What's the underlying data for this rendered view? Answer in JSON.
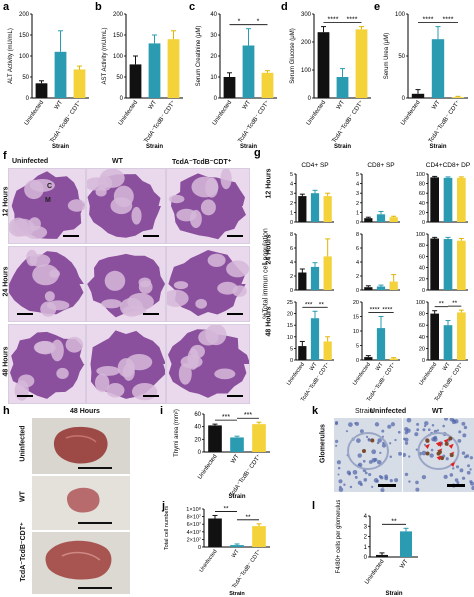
{
  "colors": {
    "uninfected": "#111111",
    "wt": "#2a9bb0",
    "tcd": "#f4d23a",
    "histo_bg": "#ead8ec",
    "histo_cortex": "#8a4f9d",
    "histo_medulla": "#d6b9d9",
    "tissue": "#a7514d",
    "ihc_bg": "#d7dde6"
  },
  "strain_label": "Strain",
  "bar_categories": [
    "Uninfected",
    "WT",
    "TcdA⁻TcdB⁻ CDT⁺"
  ],
  "chart_data": [
    {
      "panel": "a",
      "type": "bar",
      "ylabel": "ALT Activity (mU/mL)",
      "xlabel": "Strain",
      "ylim": [
        0,
        200
      ],
      "yticks": [
        0,
        50,
        100,
        150,
        200
      ],
      "categories": [
        "Uninfected",
        "WT",
        "TcdA⁻TcdB⁻ CDT⁺"
      ],
      "values": [
        35,
        110,
        68
      ],
      "errors": [
        6,
        50,
        8
      ],
      "sig": []
    },
    {
      "panel": "b",
      "type": "bar",
      "ylabel": "AST Activity (mU/mL)",
      "xlabel": "Strain",
      "ylim": [
        0,
        200
      ],
      "yticks": [
        0,
        50,
        100,
        150,
        200
      ],
      "categories": [
        "Uninfected",
        "WT",
        "TcdA⁻TcdB⁻ CDT⁺"
      ],
      "values": [
        80,
        130,
        140
      ],
      "errors": [
        20,
        20,
        20
      ],
      "sig": []
    },
    {
      "panel": "c",
      "type": "bar",
      "ylabel": "Serum Creatinine (μM)",
      "xlabel": "Strain",
      "ylim": [
        0,
        40
      ],
      "yticks": [
        0,
        10,
        20,
        30,
        40
      ],
      "categories": [
        "Uninfected",
        "WT",
        "TcdA⁻TcdB⁻ CDT⁺"
      ],
      "values": [
        10,
        25,
        12
      ],
      "errors": [
        2,
        8,
        1
      ],
      "sig": [
        {
          "from": 0,
          "to": 1,
          "text": "*"
        },
        {
          "from": 1,
          "to": 2,
          "text": "*"
        }
      ]
    },
    {
      "panel": "d",
      "type": "bar",
      "ylabel": "Serum Glucose (μM)",
      "xlabel": "Strain",
      "ylim": [
        0,
        300
      ],
      "yticks": [
        0,
        100,
        200,
        300
      ],
      "categories": [
        "Uninfected",
        "WT",
        "TcdA⁻TcdB⁻ CDT⁺"
      ],
      "values": [
        235,
        75,
        245
      ],
      "errors": [
        20,
        30,
        10
      ],
      "sig": [
        {
          "from": 0,
          "to": 1,
          "text": "****"
        },
        {
          "from": 1,
          "to": 2,
          "text": "****"
        }
      ]
    },
    {
      "panel": "e",
      "type": "bar",
      "ylabel": "Serum Urea (μM)",
      "xlabel": "Strain",
      "ylim": [
        0,
        100
      ],
      "yticks": [
        0,
        50,
        100
      ],
      "categories": [
        "Uninfected",
        "WT",
        "TcdA⁻TcdB⁻ CDT⁺"
      ],
      "values": [
        5,
        70,
        1
      ],
      "errors": [
        5,
        15,
        1
      ],
      "sig": [
        {
          "from": 0,
          "to": 1,
          "text": "****"
        },
        {
          "from": 1,
          "to": 2,
          "text": "****"
        }
      ]
    },
    {
      "panel": "g",
      "type": "bar",
      "group": "12 Hours",
      "title": "CD4+ SP",
      "ylim": [
        0,
        5
      ],
      "yticks": [
        0,
        1,
        2,
        3,
        4,
        5
      ],
      "categories": [
        "Uninfected",
        "WT",
        "TcdA⁻TcdB⁻ CDT⁺"
      ],
      "values": [
        2.7,
        3.0,
        2.7
      ],
      "errors": [
        0.2,
        0.3,
        0.3
      ],
      "sig": []
    },
    {
      "panel": "g",
      "type": "bar",
      "group": "12 Hours",
      "title": "CD8+ SP",
      "ylim": [
        0,
        5
      ],
      "yticks": [
        0,
        1,
        2,
        3,
        4,
        5
      ],
      "categories": [
        "Uninfected",
        "WT",
        "TcdA⁻TcdB⁻ CDT⁺"
      ],
      "values": [
        0.4,
        0.8,
        0.5
      ],
      "errors": [
        0.1,
        0.3,
        0.1
      ],
      "sig": []
    },
    {
      "panel": "g",
      "type": "bar",
      "group": "12 Hours",
      "title": "CD4+CD8+ DP",
      "ylim": [
        0,
        100
      ],
      "yticks": [
        0,
        20,
        40,
        60,
        80,
        100
      ],
      "categories": [
        "Uninfected",
        "WT",
        "TcdA⁻TcdB⁻ CDT⁺"
      ],
      "values": [
        93,
        92,
        92
      ],
      "errors": [
        2,
        2,
        2
      ],
      "sig": []
    },
    {
      "panel": "g",
      "type": "bar",
      "group": "24 Hours",
      "ylim": [
        0,
        8
      ],
      "yticks": [
        0,
        2,
        4,
        6,
        8
      ],
      "categories": [
        "Uninfected",
        "WT",
        "TcdA⁻TcdB⁻ CDT⁺"
      ],
      "values": [
        2.5,
        3.3,
        4.8
      ],
      "errors": [
        0.5,
        0.6,
        2.5
      ],
      "sig": []
    },
    {
      "panel": "g",
      "type": "bar",
      "group": "24 Hours",
      "ylim": [
        0,
        8
      ],
      "yticks": [
        0,
        2,
        4,
        6,
        8
      ],
      "categories": [
        "Uninfected",
        "WT",
        "TcdA⁻TcdB⁻ CDT⁺"
      ],
      "values": [
        0.4,
        0.5,
        1.2
      ],
      "errors": [
        0.2,
        0.2,
        1.0
      ],
      "sig": []
    },
    {
      "panel": "g",
      "type": "bar",
      "group": "24 Hours",
      "ylim": [
        0,
        100
      ],
      "yticks": [
        0,
        20,
        40,
        60,
        80,
        100
      ],
      "categories": [
        "Uninfected",
        "WT",
        "TcdA⁻TcdB⁻ CDT⁺"
      ],
      "values": [
        92,
        91,
        88
      ],
      "errors": [
        2,
        3,
        4
      ],
      "sig": []
    },
    {
      "panel": "g",
      "type": "bar",
      "group": "48 Hours",
      "ylim": [
        0,
        25
      ],
      "yticks": [
        0,
        5,
        10,
        15,
        20,
        25
      ],
      "categories": [
        "Uninfected",
        "WT",
        "TcdA⁻TcdB⁻ CDT⁺"
      ],
      "values": [
        6,
        18,
        8
      ],
      "errors": [
        2,
        3,
        2
      ],
      "sig": [
        {
          "from": 0,
          "to": 1,
          "text": "***"
        },
        {
          "from": 1,
          "to": 2,
          "text": "**"
        }
      ]
    },
    {
      "panel": "g",
      "type": "bar",
      "group": "48 Hours",
      "ylim": [
        0,
        20
      ],
      "yticks": [
        0,
        5,
        10,
        15,
        20
      ],
      "categories": [
        "Uninfected",
        "WT",
        "TcdA⁻TcdB⁻ CDT⁺"
      ],
      "values": [
        1,
        11,
        0.5
      ],
      "errors": [
        0.5,
        4,
        0.3
      ],
      "sig": [
        {
          "from": 0,
          "to": 1,
          "text": "****"
        },
        {
          "from": 1,
          "to": 2,
          "text": "****"
        }
      ]
    },
    {
      "panel": "g",
      "type": "bar",
      "group": "48 Hours",
      "ylim": [
        0,
        100
      ],
      "yticks": [
        0,
        20,
        40,
        60,
        80,
        100
      ],
      "categories": [
        "Uninfected",
        "WT",
        "TcdA⁻TcdB⁻ CDT⁺"
      ],
      "values": [
        80,
        60,
        82
      ],
      "errors": [
        5,
        8,
        4
      ],
      "sig": [
        {
          "from": 0,
          "to": 1,
          "text": "**"
        },
        {
          "from": 1,
          "to": 2,
          "text": "**"
        }
      ]
    },
    {
      "panel": "i",
      "type": "bar",
      "ylabel": "Thymi area (mm²)",
      "xlabel": "Strain",
      "ylim": [
        0,
        60
      ],
      "yticks": [
        0,
        20,
        40,
        60
      ],
      "categories": [
        "Uninfected",
        "WT",
        "TcdA⁻TcdB⁻ CDT⁺"
      ],
      "values": [
        42,
        23,
        44
      ],
      "errors": [
        2,
        2,
        3
      ],
      "sig": [
        {
          "from": 0,
          "to": 1,
          "text": "***"
        },
        {
          "from": 1,
          "to": 2,
          "text": "***"
        }
      ]
    },
    {
      "panel": "j",
      "type": "bar",
      "ylabel": "Total cell numbers",
      "xlabel": "Strain",
      "ylim": [
        0,
        100000000.0
      ],
      "yticks": [
        0,
        20000000.0,
        40000000.0,
        60000000.0,
        80000000.0,
        100000000.0
      ],
      "yticklabels": [
        "0",
        "2×10⁷",
        "4×10⁷",
        "6×10⁷",
        "8×10⁷",
        "1×10⁸"
      ],
      "categories": [
        "Uninfected",
        "WT",
        "TcdA⁻TcdB⁻ CDT⁺"
      ],
      "values": [
        75000000.0,
        5000000.0,
        55000000.0
      ],
      "errors": [
        8000000.0,
        3000000.0,
        6000000.0
      ],
      "sig": [
        {
          "from": 0,
          "to": 1,
          "text": "**"
        },
        {
          "from": 1,
          "to": 2,
          "text": "**"
        }
      ]
    },
    {
      "panel": "l",
      "type": "bar",
      "ylabel": "F4/80+ cells per glomerulus",
      "xlabel": "Strain",
      "ylim": [
        0,
        4
      ],
      "yticks": [
        0,
        1,
        2,
        3,
        4
      ],
      "categories": [
        "Uninfected",
        "WT"
      ],
      "values": [
        0.2,
        2.5
      ],
      "errors": [
        0.2,
        0.3
      ],
      "sig": [
        {
          "from": 0,
          "to": 1,
          "text": "**"
        }
      ]
    }
  ],
  "panel_g": {
    "ylabel": "%Total immun cell population",
    "row_labels": [
      "12 Hours",
      "24 Hours",
      "48 Hours"
    ]
  },
  "panel_f": {
    "columns": [
      "Uninfected",
      "WT",
      "TcdA⁻TcdB⁻CDT⁺"
    ],
    "rows": [
      "12 Hours",
      "24 Hours",
      "48 Hours"
    ],
    "region_c": "C",
    "region_m": "M"
  },
  "panel_h": {
    "title": "48 Hours",
    "rows": [
      "Uninfected",
      "WT",
      "TcdA⁻TcdB⁻CDT⁺"
    ]
  },
  "panel_k": {
    "row_label": "Glomerulus",
    "columns": [
      "Uninfected",
      "WT"
    ]
  }
}
